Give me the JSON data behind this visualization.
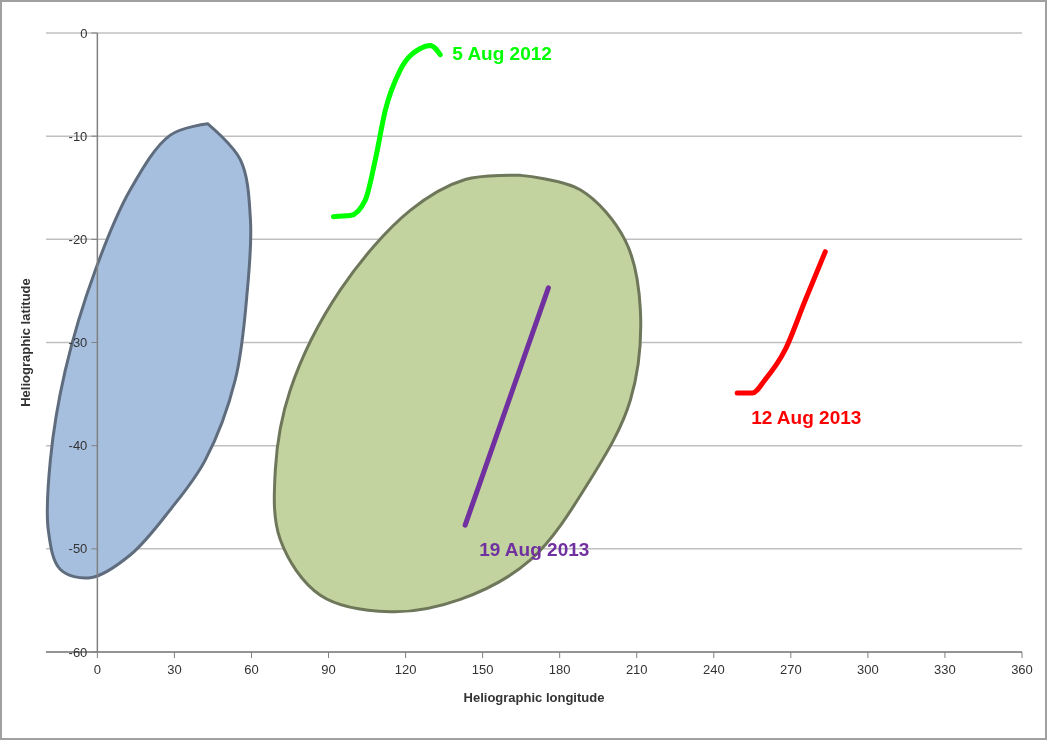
{
  "chart_data": {
    "type": "line",
    "xlabel": "Heliographic longitude",
    "ylabel": "Heliographic latitude",
    "xlim": [
      -20,
      360
    ],
    "xticks": [
      0,
      30,
      60,
      90,
      120,
      150,
      180,
      210,
      240,
      270,
      300,
      330,
      360
    ],
    "ylim": [
      -60,
      0
    ],
    "yticks": [
      -60,
      -50,
      -40,
      -30,
      -20,
      -10,
      0
    ],
    "grid": "y",
    "marker": "none",
    "line_style": "solid",
    "series": [
      {
        "type": "area",
        "color": "#a7bfde",
        "x": [
          43,
          55.7,
          59.6,
          58.4,
          53.7,
          42.0,
          28.4,
          12.8,
          -2.7,
          -14.4,
          -19.1,
          -18.3,
          -12.5,
          -0.8,
          12.8,
          28.4,
          43
        ],
        "values": [
          -8.8,
          -12.3,
          -18.1,
          -24.9,
          -33.6,
          -41.4,
          -46.2,
          -50.6,
          -52.8,
          -52.0,
          -48.2,
          -41.4,
          -32.7,
          -23.0,
          -15.2,
          -9.9,
          -8.8
        ]
      },
      {
        "type": "area",
        "color": "#c3d39f",
        "x": [
          164.8,
          188.0,
          205.5,
          211.4,
          207.5,
          191.9,
          168.5,
          141.3,
          114.1,
          86.8,
          71.2,
          69.3,
          75.1,
          94.6,
          121.8,
          143.2,
          164.8
        ],
        "values": [
          -13.8,
          -15.2,
          -20.1,
          -26.8,
          -35.6,
          -43.3,
          -51.1,
          -54.9,
          -56.1,
          -54.5,
          -49.1,
          -42.3,
          -34.6,
          -24.9,
          -17.2,
          -14.2,
          -13.8
        ]
      },
      {
        "name": "5 Aug 2012",
        "color": "#00ff00",
        "x": [
          91.9,
          98.5,
          104.3,
          108.2,
          112.1,
          117.9,
          125.7,
          129.6,
          133.5
        ],
        "values": [
          -17.8,
          -17.7,
          -16.2,
          -12.3,
          -7.5,
          -3.6,
          -1.5,
          -1.2,
          -2.1
        ]
      },
      {
        "name": "12 Aug 2013",
        "color": "#ff0000",
        "x": [
          249.1,
          255,
          260,
          267.8,
          275.6,
          283.4
        ],
        "values": [
          -34.9,
          -34.9,
          -33.6,
          -30.7,
          -25.9,
          -21.2
        ]
      },
      {
        "name": "19 Aug 2013",
        "color": "#7030a0",
        "x": [
          143.2,
          175.6
        ],
        "values": [
          -47.7,
          -24.7
        ]
      }
    ]
  }
}
